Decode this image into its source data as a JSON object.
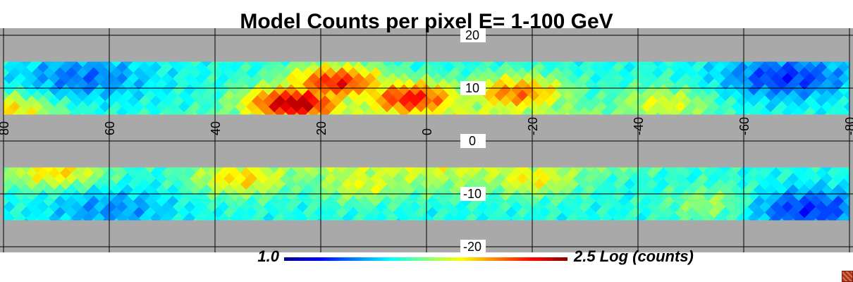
{
  "chart_data": {
    "type": "heatmap",
    "title": "Model Counts per pixel E= 1-100 GeV",
    "x_axis": {
      "label": "",
      "range": [
        80,
        -80
      ],
      "ticks": [
        "80",
        "60",
        "40",
        "20",
        "0",
        "-20",
        "-40",
        "-60",
        "-80"
      ],
      "tick_values": [
        80,
        60,
        40,
        20,
        0,
        -20,
        -40,
        -60,
        -80
      ]
    },
    "y_axis": {
      "label": "",
      "range": [
        -20,
        20
      ],
      "ticks": [
        "20",
        "10",
        "0",
        "-10",
        "-20"
      ],
      "tick_values": [
        20,
        10,
        0,
        -10,
        -20
      ]
    },
    "data_bands": [
      [
        5,
        15
      ],
      [
        -15,
        -5
      ]
    ],
    "grid": true,
    "colorbar": {
      "min_label": "1.0",
      "max_label": "2.5 Log (counts)",
      "range": [
        1.0,
        2.5
      ],
      "colors": [
        "#00008b",
        "#0000ff",
        "#00ffff",
        "#ffff00",
        "#ff0000",
        "#8b0000"
      ]
    },
    "model": {
      "upper_band": {
        "hotspots": [
          {
            "l": 25,
            "b": 7,
            "value": 2.45
          },
          {
            "l": 17,
            "b": 11,
            "value": 2.3
          },
          {
            "l": 3,
            "b": 8,
            "value": 2.3
          },
          {
            "l": -17,
            "b": 9,
            "value": 2.15
          },
          {
            "l": 79,
            "b": 6,
            "value": 2.0
          },
          {
            "l": -45,
            "b": 7,
            "value": 1.9
          }
        ]
      },
      "lower_band": {
        "hotspots": [
          {
            "l": 35,
            "b": -7,
            "value": 2.0
          },
          {
            "l": 12,
            "b": -8,
            "value": 1.9
          },
          {
            "l": -20,
            "b": -7,
            "value": 1.95
          },
          {
            "l": -56,
            "b": -12,
            "value": 1.85
          },
          {
            "l": 70,
            "b": -6,
            "value": 2.0
          }
        ]
      },
      "cold_regions": [
        {
          "l": 65,
          "b": 12,
          "value": 1.35
        },
        {
          "l": -68,
          "b": 12,
          "value": 1.25
        },
        {
          "l": 60,
          "b": -13,
          "value": 1.4
        },
        {
          "l": -72,
          "b": -13,
          "value": 1.25
        }
      ]
    }
  }
}
